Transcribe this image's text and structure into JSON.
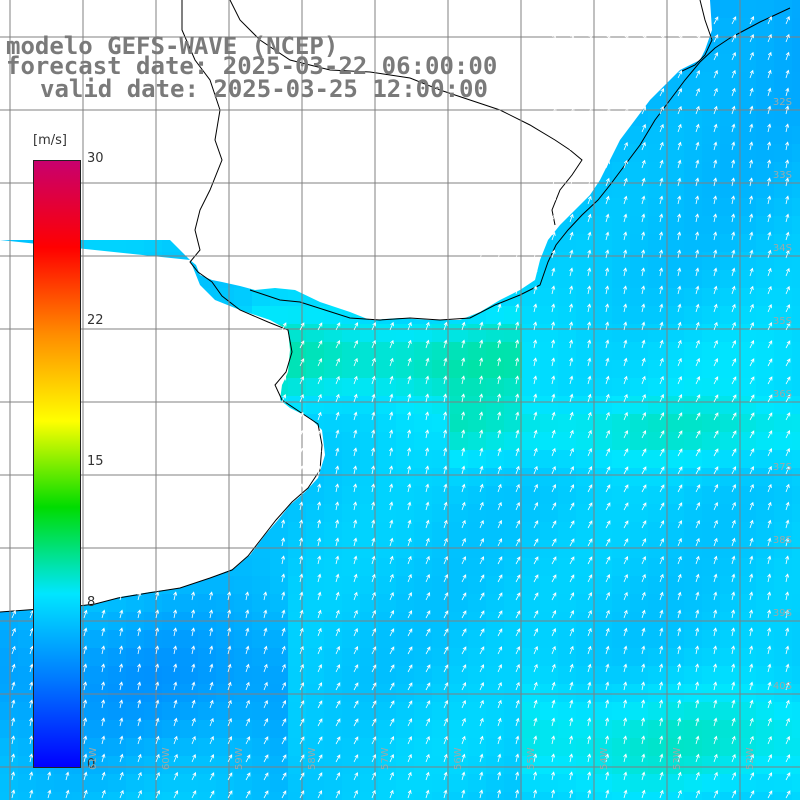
{
  "title": {
    "line1": "modelo GEFS-WAVE (NCEP)",
    "line2": "forecast date: 2025-03-22 06:00:00",
    "line3": "valid date: 2025-03-25 12:00:00"
  },
  "colorbar": {
    "unit": "[m/s]",
    "min": 0,
    "max": 30,
    "ticks": [
      {
        "value": 30,
        "label": "30"
      },
      {
        "value": 22,
        "label": "22"
      },
      {
        "value": 15,
        "label": "15"
      },
      {
        "value": 8,
        "label": "8"
      },
      {
        "value": 0,
        "label": "0"
      }
    ],
    "colors": [
      "#0000ff",
      "#0078ff",
      "#00e6ff",
      "#00dc00",
      "#ffff00",
      "#ff8c00",
      "#ff0000",
      "#c8006e"
    ]
  },
  "map": {
    "lon_range": [
      -62,
      -51
    ],
    "lat_range": [
      -42,
      -31
    ],
    "lat_labels": [
      "32S",
      "33S",
      "34S",
      "35S",
      "36S",
      "37S",
      "38S",
      "39S",
      "40S"
    ],
    "lon_labels": [
      "61W",
      "60W",
      "59W",
      "58W",
      "57W",
      "56W",
      "55W",
      "54W",
      "53W",
      "52W"
    ],
    "land_color": "#ffffff",
    "coast_color": "#000000",
    "grid_color": "#808080",
    "arrow_color": "#ffffff"
  }
}
